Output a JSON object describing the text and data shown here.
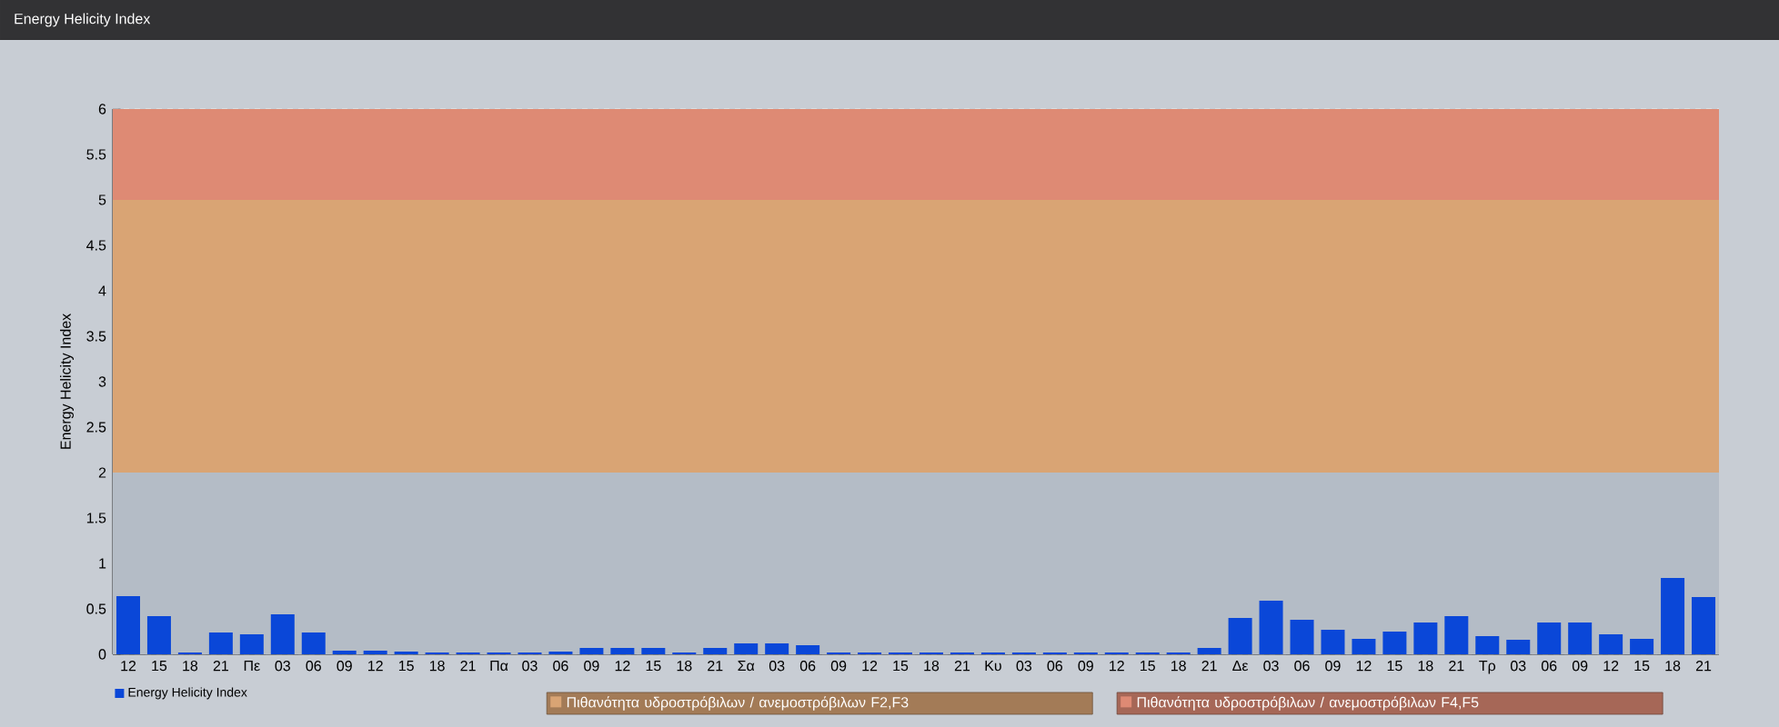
{
  "chart_data": {
    "type": "bar",
    "title": "Energy Helicity Index",
    "ylabel": "Energy Helicity Index",
    "categories": [
      "12",
      "15",
      "18",
      "21",
      "Πε",
      "03",
      "06",
      "09",
      "12",
      "15",
      "18",
      "21",
      "Πα",
      "03",
      "06",
      "09",
      "12",
      "15",
      "18",
      "21",
      "Σα",
      "03",
      "06",
      "09",
      "12",
      "15",
      "18",
      "21",
      "Κυ",
      "03",
      "06",
      "09",
      "12",
      "15",
      "18",
      "21",
      "Δε",
      "03",
      "06",
      "09",
      "12",
      "15",
      "18",
      "21",
      "Τρ",
      "03",
      "06",
      "09",
      "12",
      "15",
      "18",
      "21"
    ],
    "series": [
      {
        "name": "Energy Helicity Index",
        "color": "#0a47d8",
        "values": [
          0.64,
          0.42,
          0.02,
          0.24,
          0.22,
          0.44,
          0.24,
          0.04,
          0.04,
          0.03,
          0.02,
          0.02,
          0.02,
          0.02,
          0.03,
          0.07,
          0.07,
          0.07,
          0.02,
          0.07,
          0.12,
          0.12,
          0.1,
          0.02,
          0.02,
          0.02,
          0.02,
          0.02,
          0.02,
          0.02,
          0.02,
          0.02,
          0.02,
          0.02,
          0.02,
          0.07,
          0.4,
          0.59,
          0.38,
          0.27,
          0.17,
          0.25,
          0.35,
          0.42,
          0.2,
          0.16,
          0.35,
          0.35,
          0.22,
          0.17,
          0.84,
          0.63
        ]
      }
    ],
    "ylim": [
      0,
      6
    ],
    "yticks": [
      0,
      0.5,
      1,
      1.5,
      2,
      2.5,
      3,
      3.5,
      4,
      4.5,
      5,
      5.5,
      6
    ],
    "bands": [
      {
        "axis": "y",
        "from": 0,
        "to": 2,
        "color": "#b4bcc6"
      },
      {
        "axis": "y",
        "from": 2,
        "to": 5,
        "label": "Πιθανότητα υδροστρόβιλων / ανεμοστρόβιλων F2,F3",
        "color": "#d9a474"
      },
      {
        "axis": "y",
        "from": 5,
        "to": 6,
        "label": "Πιθανότητα υδροστρόβιλων / ανεμοστρόβιλων F4,F5",
        "color": "#de8a74"
      }
    ],
    "grid": true,
    "legend": "bottom left"
  }
}
